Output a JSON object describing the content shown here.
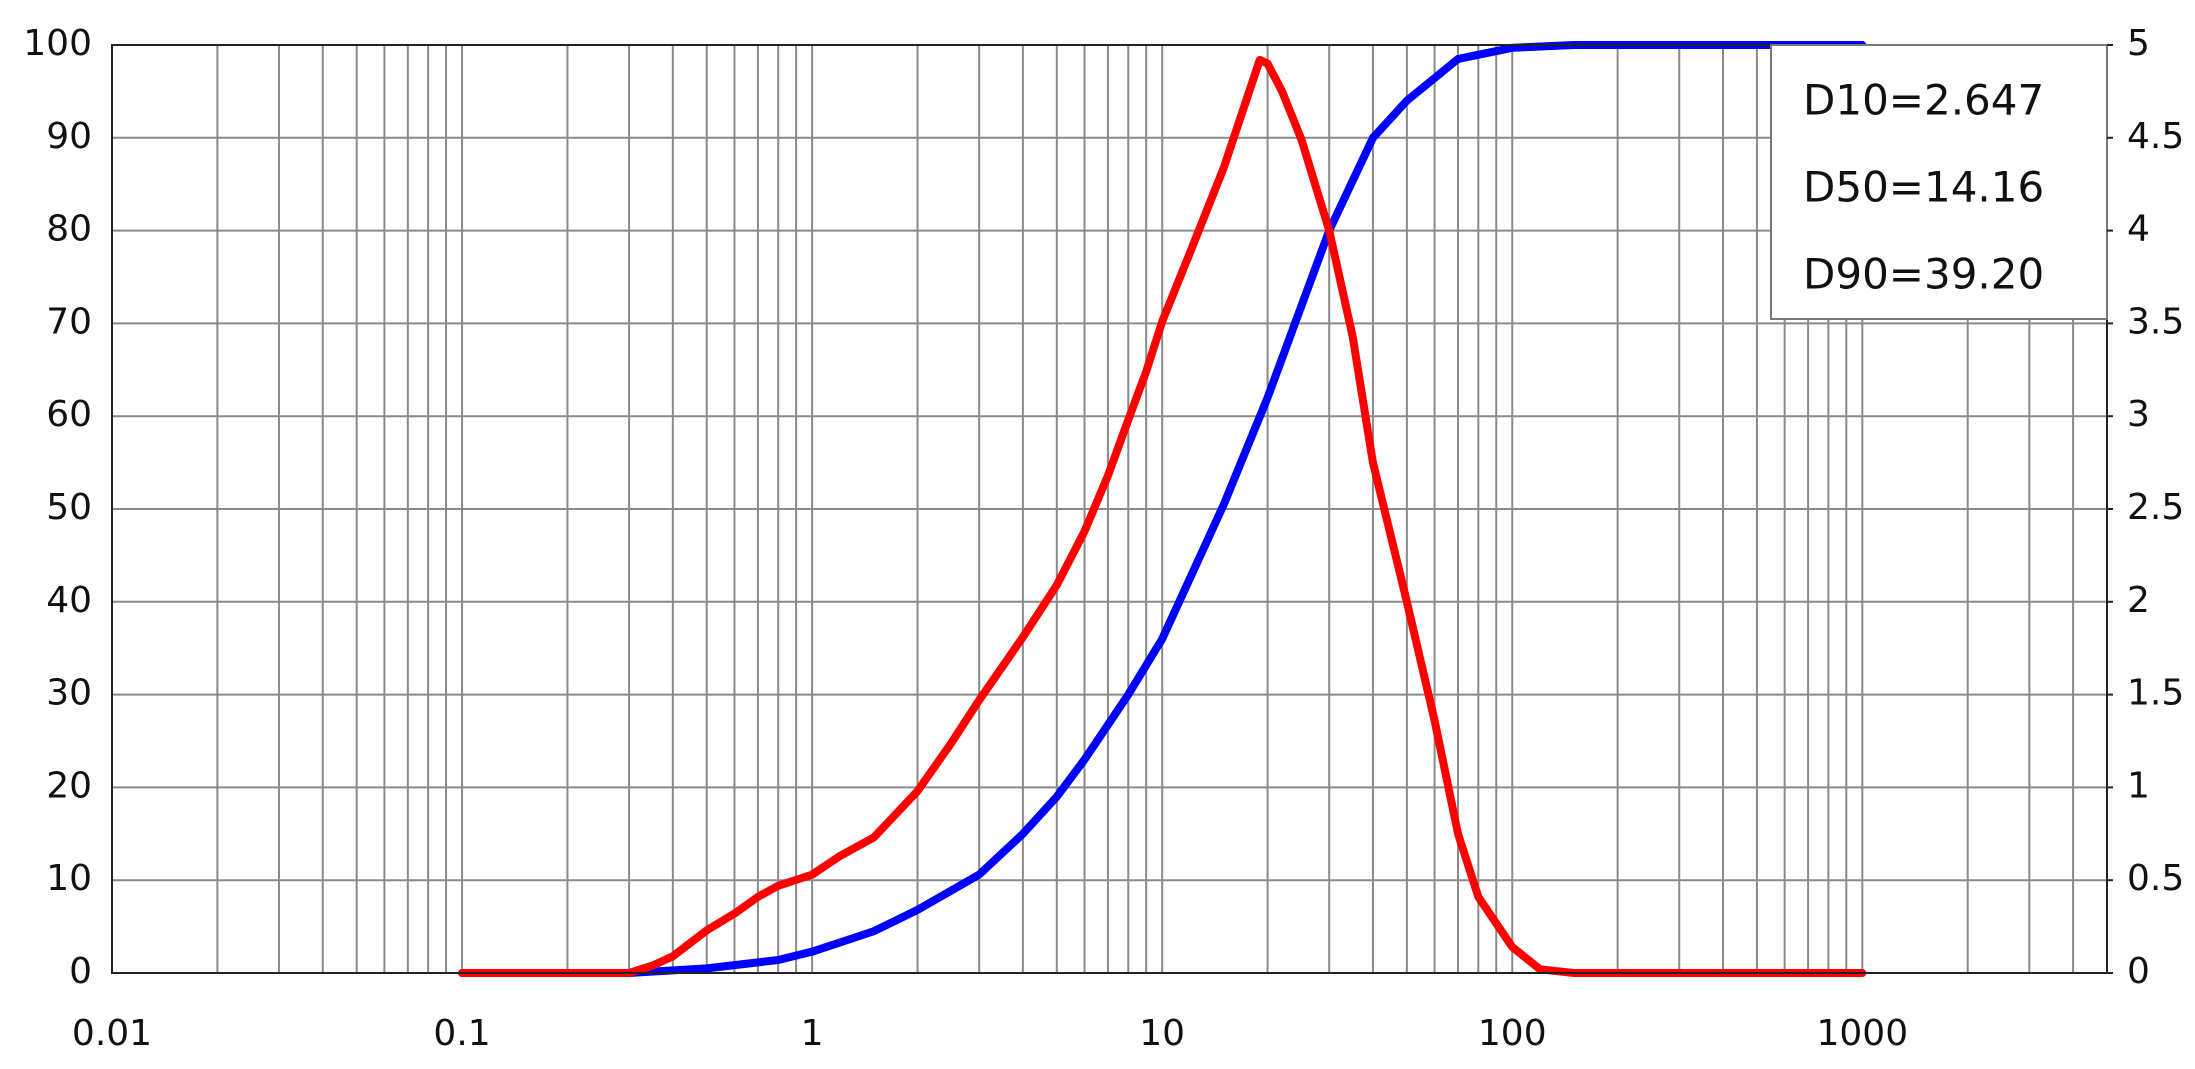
{
  "chart_data": {
    "type": "line",
    "xlog": true,
    "grid": true,
    "xlim": [
      0.01,
      5000
    ],
    "xticks": [
      0.01,
      0.1,
      1,
      10,
      100,
      1000
    ],
    "xminorticks": [
      0.02,
      0.03,
      0.04,
      0.05,
      0.06,
      0.07,
      0.08,
      0.09,
      0.2,
      0.3,
      0.4,
      0.5,
      0.6,
      0.7,
      0.8,
      0.9,
      2,
      3,
      4,
      5,
      6,
      7,
      8,
      9,
      20,
      30,
      40,
      50,
      60,
      70,
      80,
      90,
      200,
      300,
      400,
      500,
      600,
      700,
      800,
      900,
      2000,
      3000,
      4000
    ],
    "ylim": [
      0,
      100
    ],
    "yticks": [
      0,
      10,
      20,
      30,
      40,
      50,
      60,
      70,
      80,
      90,
      100
    ],
    "y2lim": [
      0,
      5
    ],
    "y2ticks": [
      0,
      0.5,
      1,
      1.5,
      2,
      2.5,
      3,
      3.5,
      4,
      4.5,
      5
    ],
    "series": [
      {
        "color": "#0000ff",
        "x": [
          0.1,
          0.3,
          0.5,
          0.8,
          1,
          1.5,
          2,
          3,
          4,
          5,
          6,
          8,
          10,
          15,
          20,
          30,
          40,
          50,
          70,
          100,
          150,
          1000
        ],
        "values": [
          0,
          0,
          0.5,
          1.4,
          2.3,
          4.5,
          6.8,
          10.6,
          15,
          19,
          23,
          30,
          36,
          50.5,
          62,
          80,
          90,
          94,
          98.5,
          99.7,
          100,
          100
        ]
      },
      {
        "color": "#ff0000",
        "axis": "y2",
        "x": [
          0.1,
          0.3,
          0.35,
          0.4,
          0.5,
          0.6,
          0.7,
          0.8,
          1,
          1.2,
          1.5,
          2,
          2.5,
          3,
          4,
          5,
          6,
          7,
          8,
          9,
          10,
          12,
          15,
          19,
          20,
          22,
          25,
          30,
          35,
          40,
          50,
          60,
          70,
          80,
          100,
          120,
          150,
          1000
        ],
        "values": [
          0,
          0,
          0.04,
          0.09,
          0.23,
          0.32,
          0.41,
          0.47,
          0.53,
          0.63,
          0.73,
          0.98,
          1.24,
          1.47,
          1.81,
          2.09,
          2.38,
          2.68,
          2.98,
          3.24,
          3.51,
          3.88,
          4.34,
          4.92,
          4.9,
          4.75,
          4.49,
          4.0,
          3.43,
          2.75,
          2.0,
          1.36,
          0.75,
          0.41,
          0.14,
          0.02,
          0,
          0
        ]
      }
    ],
    "annotations": [
      "D10=2.647",
      "D50=14.16",
      "D90=39.20"
    ]
  }
}
